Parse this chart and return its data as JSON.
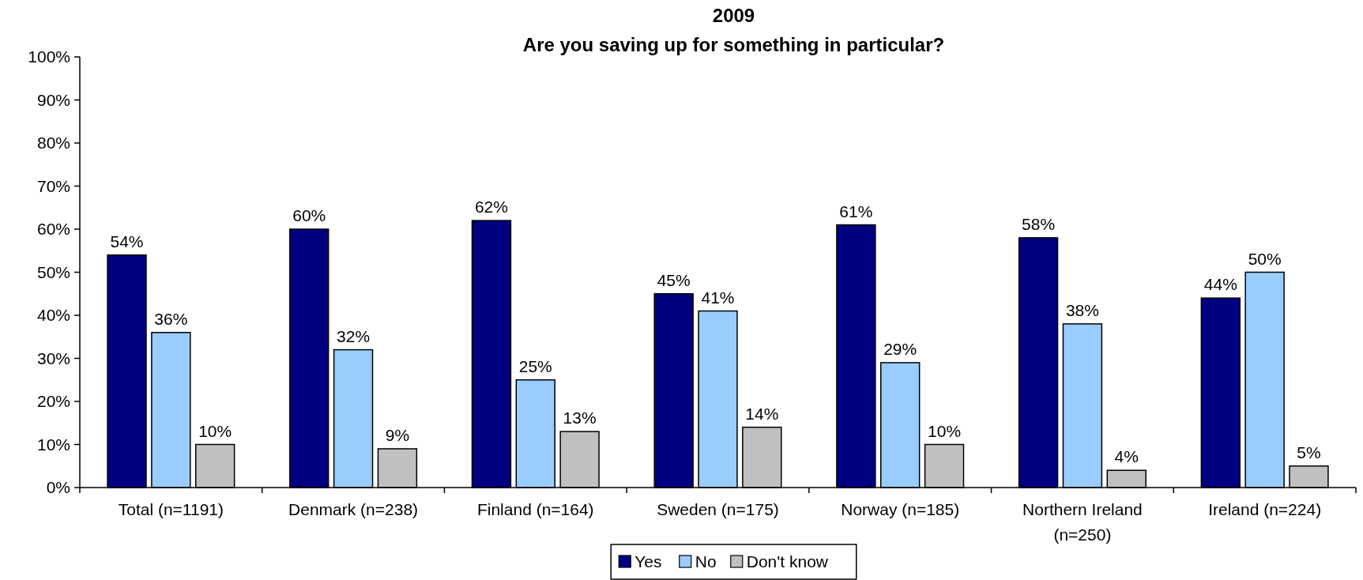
{
  "chart_data": {
    "type": "bar",
    "title": "2009",
    "subtitle": "Are you saving up for something in particular?",
    "categories": [
      "Total (n=1191)",
      "Denmark (n=238)",
      "Finland (n=164)",
      "Sweden (n=175)",
      "Norway (n=185)",
      "Northern Ireland (n=250)",
      "Ireland (n=224)"
    ],
    "series": [
      {
        "name": "Yes",
        "color": "#000080",
        "values": [
          54,
          60,
          62,
          45,
          61,
          58,
          44
        ],
        "value_labels": [
          "54%",
          "60%",
          "62%",
          "45%",
          "61%",
          "58%",
          "44%"
        ]
      },
      {
        "name": "No",
        "color": "#99ccff",
        "values": [
          36,
          32,
          25,
          41,
          29,
          38,
          50
        ],
        "value_labels": [
          "36%",
          "32%",
          "25%",
          "41%",
          "29%",
          "38%",
          "50%"
        ]
      },
      {
        "name": "Don't know",
        "color": "#c0c0c0",
        "values": [
          10,
          9,
          13,
          14,
          10,
          4,
          5
        ],
        "value_labels": [
          "10%",
          "9%",
          "13%",
          "14%",
          "10%",
          "4%",
          "5%"
        ]
      }
    ],
    "ylim": [
      0,
      100
    ],
    "yticks": [
      {
        "value": 0,
        "label": "0%"
      },
      {
        "value": 10,
        "label": "10%"
      },
      {
        "value": 20,
        "label": "20%"
      },
      {
        "value": 30,
        "label": "30%"
      },
      {
        "value": 40,
        "label": "40%"
      },
      {
        "value": 50,
        "label": "50%"
      },
      {
        "value": 60,
        "label": "60%"
      },
      {
        "value": 70,
        "label": "70%"
      },
      {
        "value": 80,
        "label": "80%"
      },
      {
        "value": 90,
        "label": "90%"
      },
      {
        "value": 100,
        "label": "100%"
      }
    ],
    "grid": false,
    "legend": "bottom"
  }
}
